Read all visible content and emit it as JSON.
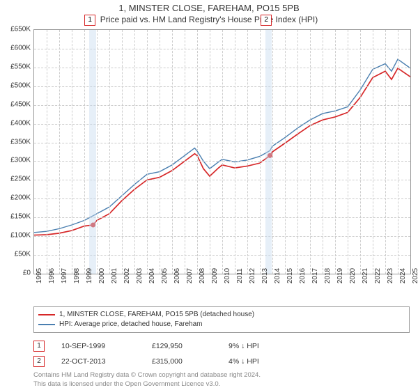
{
  "title": "1, MINSTER CLOSE, FAREHAM, PO15 5PB",
  "subtitle": "Price paid vs. HM Land Registry's House Price Index (HPI)",
  "chart": {
    "type": "line",
    "ylim": [
      0,
      650000
    ],
    "ytick_step": 50000,
    "yticks": [
      "£0",
      "£50K",
      "£100K",
      "£150K",
      "£200K",
      "£250K",
      "£300K",
      "£350K",
      "£400K",
      "£450K",
      "£500K",
      "£550K",
      "£600K",
      "£650K"
    ],
    "xlim": [
      1995,
      2025
    ],
    "xticks": [
      1995,
      1996,
      1997,
      1998,
      1999,
      2000,
      2001,
      2002,
      2003,
      2004,
      2005,
      2006,
      2007,
      2008,
      2009,
      2010,
      2011,
      2012,
      2013,
      2014,
      2015,
      2016,
      2017,
      2018,
      2019,
      2020,
      2021,
      2022,
      2023,
      2024,
      2025
    ],
    "background_color": "#ffffff",
    "grid_color": "#cccccc",
    "border_color": "#999999",
    "series": [
      {
        "name": "property",
        "label": "1, MINSTER CLOSE, FAREHAM, PO15 5PB (detached house)",
        "color": "#d62728",
        "line_width": 1.7,
        "data": [
          [
            1995,
            103000
          ],
          [
            1996,
            104000
          ],
          [
            1997,
            108000
          ],
          [
            1998,
            115000
          ],
          [
            1999,
            127000
          ],
          [
            1999.7,
            129950
          ],
          [
            2000,
            142000
          ],
          [
            2001,
            160000
          ],
          [
            2002,
            195000
          ],
          [
            2003,
            225000
          ],
          [
            2004,
            250000
          ],
          [
            2005,
            257000
          ],
          [
            2006,
            275000
          ],
          [
            2007,
            300000
          ],
          [
            2007.8,
            320000
          ],
          [
            2008,
            315000
          ],
          [
            2008.5,
            280000
          ],
          [
            2009,
            260000
          ],
          [
            2009.7,
            282000
          ],
          [
            2010,
            290000
          ],
          [
            2011,
            282000
          ],
          [
            2012,
            287000
          ],
          [
            2013,
            295000
          ],
          [
            2013.8,
            315000
          ],
          [
            2014,
            325000
          ],
          [
            2015,
            348000
          ],
          [
            2016,
            372000
          ],
          [
            2017,
            395000
          ],
          [
            2018,
            410000
          ],
          [
            2019,
            418000
          ],
          [
            2020,
            430000
          ],
          [
            2021,
            470000
          ],
          [
            2022,
            523000
          ],
          [
            2023,
            540000
          ],
          [
            2023.5,
            518000
          ],
          [
            2024,
            548000
          ],
          [
            2025,
            525000
          ]
        ]
      },
      {
        "name": "hpi",
        "label": "HPI: Average price, detached house, Fareham",
        "color": "#4a7fb0",
        "line_width": 1.4,
        "data": [
          [
            1995,
            110000
          ],
          [
            1996,
            113000
          ],
          [
            1997,
            120000
          ],
          [
            1998,
            130000
          ],
          [
            1999,
            142000
          ],
          [
            2000,
            160000
          ],
          [
            2001,
            178000
          ],
          [
            2002,
            208000
          ],
          [
            2003,
            238000
          ],
          [
            2004,
            265000
          ],
          [
            2005,
            272000
          ],
          [
            2006,
            290000
          ],
          [
            2007,
            315000
          ],
          [
            2007.8,
            335000
          ],
          [
            2008,
            327000
          ],
          [
            2008.5,
            300000
          ],
          [
            2009,
            280000
          ],
          [
            2009.7,
            298000
          ],
          [
            2010,
            305000
          ],
          [
            2011,
            298000
          ],
          [
            2012,
            303000
          ],
          [
            2013,
            313000
          ],
          [
            2013.8,
            328000
          ],
          [
            2014,
            340000
          ],
          [
            2015,
            363000
          ],
          [
            2016,
            388000
          ],
          [
            2017,
            410000
          ],
          [
            2018,
            427000
          ],
          [
            2019,
            434000
          ],
          [
            2020,
            445000
          ],
          [
            2021,
            490000
          ],
          [
            2022,
            545000
          ],
          [
            2023,
            560000
          ],
          [
            2023.5,
            540000
          ],
          [
            2024,
            572000
          ],
          [
            2025,
            548000
          ]
        ]
      }
    ],
    "bands": [
      {
        "start": 1999.4,
        "end": 1999.95,
        "color": "rgba(200,220,240,0.45)"
      },
      {
        "start": 2013.45,
        "end": 2013.95,
        "color": "rgba(200,220,240,0.45)"
      }
    ],
    "chart_markers": [
      {
        "label": "1",
        "x": 1999.4,
        "border_color": "#d62728"
      },
      {
        "label": "2",
        "x": 2013.45,
        "border_color": "#d62728"
      }
    ],
    "sale_points": [
      {
        "x": 1999.7,
        "y": 129950,
        "color": "#d62728"
      },
      {
        "x": 2013.8,
        "y": 315000,
        "color": "#d62728"
      }
    ]
  },
  "sales": [
    {
      "marker": "1",
      "marker_color": "#d62728",
      "date": "10-SEP-1999",
      "price": "£129,950",
      "change": "9% ↓ HPI"
    },
    {
      "marker": "2",
      "marker_color": "#d62728",
      "date": "22-OCT-2013",
      "price": "£315,000",
      "change": "4% ↓ HPI"
    }
  ],
  "attribution": {
    "line1": "Contains HM Land Registry data © Crown copyright and database right 2024.",
    "line2": "This data is licensed under the Open Government Licence v3.0."
  }
}
